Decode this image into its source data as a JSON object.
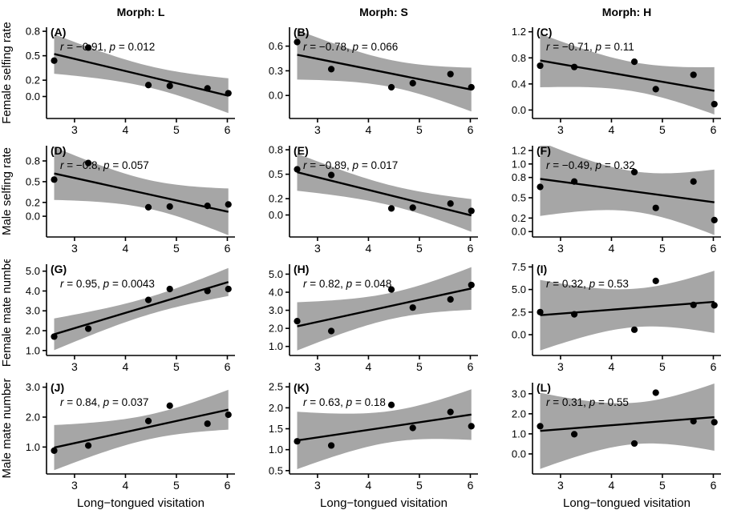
{
  "figure": {
    "background": "#ffffff",
    "band_color": "#a6a6a6",
    "line_color": "#000000",
    "point_color": "#000000",
    "axis_color": "#000000",
    "col_titles": [
      "Morph: L",
      "Morph: S",
      "Morph: H"
    ],
    "xlabel": "Long−tongued visitation"
  },
  "chart_data": [
    {
      "type": "scatter",
      "label": "(A)",
      "ylabel": "Female selfing rate",
      "r": "−0.91",
      "p": "0.012",
      "x": [
        2.6,
        3.27,
        4.45,
        4.87,
        5.61,
        6.02
      ],
      "y": [
        0.44,
        0.6,
        0.14,
        0.13,
        0.1,
        0.04
      ],
      "xlim": [
        2.45,
        6.15
      ],
      "ylim": [
        -0.27,
        0.85
      ],
      "x_ticks": [
        3,
        4,
        5,
        6
      ],
      "x_tick_labels": [
        "3",
        "4",
        "5",
        "6"
      ],
      "y_ticks": [
        0.0,
        0.2,
        0.5,
        0.8
      ],
      "y_tick_labels": [
        "0.0",
        "0.2",
        "0.5",
        "0.8"
      ],
      "fit": "linear with 95% CI band",
      "legend": "none",
      "grid": "off"
    },
    {
      "type": "scatter",
      "label": "(B)",
      "ylabel": "",
      "r": "−0.78",
      "p": "0.066",
      "x": [
        2.6,
        3.27,
        4.45,
        4.87,
        5.61,
        6.02
      ],
      "y": [
        0.65,
        0.32,
        0.1,
        0.15,
        0.26,
        0.1
      ],
      "xlim": [
        2.45,
        6.15
      ],
      "ylim": [
        -0.28,
        0.83
      ],
      "x_ticks": [
        3,
        4,
        5,
        6
      ],
      "x_tick_labels": [
        "3",
        "4",
        "5",
        "6"
      ],
      "y_ticks": [
        0.0,
        0.3,
        0.6
      ],
      "y_tick_labels": [
        "0.0",
        "0.3",
        "0.6"
      ],
      "fit": "linear with 95% CI band",
      "legend": "none",
      "grid": "off"
    },
    {
      "type": "scatter",
      "label": "(C)",
      "ylabel": "",
      "r": "−0.71",
      "p": "0.11",
      "x": [
        2.6,
        3.27,
        4.45,
        4.87,
        5.61,
        6.02
      ],
      "y": [
        0.68,
        0.66,
        0.74,
        0.32,
        0.54,
        0.09
      ],
      "xlim": [
        2.45,
        6.15
      ],
      "ylim": [
        -0.13,
        1.27
      ],
      "x_ticks": [
        3,
        4,
        5,
        6
      ],
      "x_tick_labels": [
        "3",
        "4",
        "5",
        "6"
      ],
      "y_ticks": [
        0.0,
        0.4,
        0.8,
        1.2
      ],
      "y_tick_labels": [
        "0.0",
        "0.4",
        "0.8",
        "1.2"
      ],
      "fit": "linear with 95% CI band",
      "legend": "none",
      "grid": "off"
    },
    {
      "type": "scatter",
      "label": "(D)",
      "ylabel": "Male selfing rate",
      "r": "−0.8",
      "p": "0.057",
      "x": [
        2.6,
        3.27,
        4.45,
        4.87,
        5.61,
        6.02
      ],
      "y": [
        0.53,
        0.77,
        0.13,
        0.14,
        0.15,
        0.17
      ],
      "xlim": [
        2.45,
        6.15
      ],
      "ylim": [
        -0.3,
        1.02
      ],
      "x_ticks": [
        3,
        4,
        5,
        6
      ],
      "x_tick_labels": [
        "3",
        "4",
        "5",
        "6"
      ],
      "y_ticks": [
        0.0,
        0.2,
        0.5,
        0.8
      ],
      "y_tick_labels": [
        "0.0",
        "0.2",
        "0.5",
        "0.8"
      ],
      "fit": "linear with 95% CI band",
      "legend": "none",
      "grid": "off"
    },
    {
      "type": "scatter",
      "label": "(E)",
      "ylabel": "",
      "r": "−0.89",
      "p": "0.017",
      "x": [
        2.6,
        3.27,
        4.45,
        4.87,
        5.61,
        6.02
      ],
      "y": [
        0.56,
        0.49,
        0.08,
        0.09,
        0.14,
        0.05
      ],
      "xlim": [
        2.45,
        6.15
      ],
      "ylim": [
        -0.27,
        0.85
      ],
      "x_ticks": [
        3,
        4,
        5,
        6
      ],
      "x_tick_labels": [
        "3",
        "4",
        "5",
        "6"
      ],
      "y_ticks": [
        0.0,
        0.2,
        0.5,
        0.8
      ],
      "y_tick_labels": [
        "0.0",
        "0.2",
        "0.5",
        "0.8"
      ],
      "fit": "linear with 95% CI band",
      "legend": "none",
      "grid": "off"
    },
    {
      "type": "scatter",
      "label": "(F)",
      "ylabel": "",
      "r": "−0.49",
      "p": "0.32",
      "x": [
        2.6,
        3.27,
        4.45,
        4.87,
        5.61,
        6.02
      ],
      "y": [
        0.66,
        0.74,
        0.88,
        0.35,
        0.74,
        0.17
      ],
      "xlim": [
        2.45,
        6.15
      ],
      "ylim": [
        -0.08,
        1.27
      ],
      "x_ticks": [
        3,
        4,
        5,
        6
      ],
      "x_tick_labels": [
        "3",
        "4",
        "5",
        "6"
      ],
      "y_ticks": [
        0.0,
        0.2,
        0.5,
        0.8,
        1.0,
        1.2
      ],
      "y_tick_labels": [
        "0.0",
        "0.2",
        "0.5",
        "0.8",
        "1.0",
        "1.2"
      ],
      "fit": "linear with 95% CI band",
      "legend": "none",
      "grid": "off"
    },
    {
      "type": "scatter",
      "label": "(G)",
      "ylabel": "Female mate number",
      "r": "0.95",
      "p": "0.0043",
      "x": [
        2.6,
        3.27,
        4.45,
        4.87,
        5.61,
        6.02
      ],
      "y": [
        1.7,
        2.1,
        3.55,
        4.1,
        4.0,
        4.1
      ],
      "xlim": [
        2.45,
        6.15
      ],
      "ylim": [
        0.75,
        5.35
      ],
      "x_ticks": [
        3,
        4,
        5,
        6
      ],
      "x_tick_labels": [
        "3",
        "4",
        "5",
        "6"
      ],
      "y_ticks": [
        1.0,
        2.0,
        3.0,
        4.0,
        5.0
      ],
      "y_tick_labels": [
        "1.0",
        "2.0",
        "3.0",
        "4.0",
        "5.0"
      ],
      "fit": "linear with 95% CI band",
      "legend": "none",
      "grid": "off"
    },
    {
      "type": "scatter",
      "label": "(H)",
      "ylabel": "",
      "r": "0.82",
      "p": "0.048",
      "x": [
        2.6,
        3.27,
        4.45,
        4.87,
        5.61,
        6.02
      ],
      "y": [
        2.4,
        1.85,
        4.15,
        3.15,
        3.6,
        4.4
      ],
      "xlim": [
        2.45,
        6.15
      ],
      "ylim": [
        0.5,
        5.55
      ],
      "x_ticks": [
        3,
        4,
        5,
        6
      ],
      "x_tick_labels": [
        "3",
        "4",
        "5",
        "6"
      ],
      "y_ticks": [
        1.0,
        2.0,
        3.0,
        4.0,
        5.0
      ],
      "y_tick_labels": [
        "1.0",
        "2.0",
        "3.0",
        "4.0",
        "5.0"
      ],
      "fit": "linear with 95% CI band",
      "legend": "none",
      "grid": "off"
    },
    {
      "type": "scatter",
      "label": "(I)",
      "ylabel": "",
      "r": "0.32",
      "p": "0.53",
      "x": [
        2.6,
        3.27,
        4.45,
        4.87,
        5.61,
        6.02
      ],
      "y": [
        2.5,
        2.25,
        0.55,
        5.95,
        3.3,
        3.25
      ],
      "xlim": [
        2.45,
        6.15
      ],
      "ylim": [
        -2.3,
        7.8
      ],
      "x_ticks": [
        3,
        4,
        5,
        6
      ],
      "x_tick_labels": [
        "3",
        "4",
        "5",
        "6"
      ],
      "y_ticks": [
        0.0,
        2.5,
        5.0,
        7.5
      ],
      "y_tick_labels": [
        "0.0",
        "2.5",
        "5.0",
        "7.5"
      ],
      "fit": "linear with 95% CI band",
      "legend": "none",
      "grid": "off"
    },
    {
      "type": "scatter",
      "label": "(J)",
      "ylabel": "Male mate number",
      "r": "0.84",
      "p": "0.037",
      "x": [
        2.6,
        3.27,
        4.45,
        4.87,
        5.61,
        6.02
      ],
      "y": [
        0.88,
        1.05,
        1.87,
        2.38,
        1.78,
        2.08
      ],
      "xlim": [
        2.45,
        6.15
      ],
      "ylim": [
        0.1,
        3.15
      ],
      "x_ticks": [
        3,
        4,
        5,
        6
      ],
      "x_tick_labels": [
        "3",
        "4",
        "5",
        "6"
      ],
      "y_ticks": [
        1.0,
        2.0,
        3.0
      ],
      "y_tick_labels": [
        "1.0",
        "2.0",
        "3.0"
      ],
      "fit": "linear with 95% CI band",
      "legend": "none",
      "grid": "off"
    },
    {
      "type": "scatter",
      "label": "(K)",
      "ylabel": "",
      "r": "0.63",
      "p": "0.18",
      "x": [
        2.6,
        3.27,
        4.45,
        4.87,
        5.61,
        6.02
      ],
      "y": [
        1.2,
        1.1,
        2.07,
        1.52,
        1.9,
        1.56
      ],
      "xlim": [
        2.45,
        6.15
      ],
      "ylim": [
        0.42,
        2.6
      ],
      "x_ticks": [
        3,
        4,
        5,
        6
      ],
      "x_tick_labels": [
        "3",
        "4",
        "5",
        "6"
      ],
      "y_ticks": [
        0.5,
        1.0,
        1.5,
        2.0,
        2.5
      ],
      "y_tick_labels": [
        "0.5",
        "1.0",
        "1.5",
        "2.0",
        "2.5"
      ],
      "fit": "linear with 95% CI band",
      "legend": "none",
      "grid": "off"
    },
    {
      "type": "scatter",
      "label": "(L)",
      "ylabel": "",
      "r": "0.31",
      "p": "0.55",
      "x": [
        2.6,
        3.27,
        4.45,
        4.87,
        5.61,
        6.02
      ],
      "y": [
        1.38,
        0.98,
        0.52,
        3.05,
        1.63,
        1.58
      ],
      "xlim": [
        2.45,
        6.15
      ],
      "ylim": [
        -1.0,
        3.55
      ],
      "x_ticks": [
        3,
        4,
        5,
        6
      ],
      "x_tick_labels": [
        "3",
        "4",
        "5",
        "6"
      ],
      "y_ticks": [
        0.0,
        1.0,
        2.0,
        3.0
      ],
      "y_tick_labels": [
        "0.0",
        "1.0",
        "2.0",
        "3.0"
      ],
      "fit": "linear with 95% CI band",
      "legend": "none",
      "grid": "off"
    }
  ]
}
